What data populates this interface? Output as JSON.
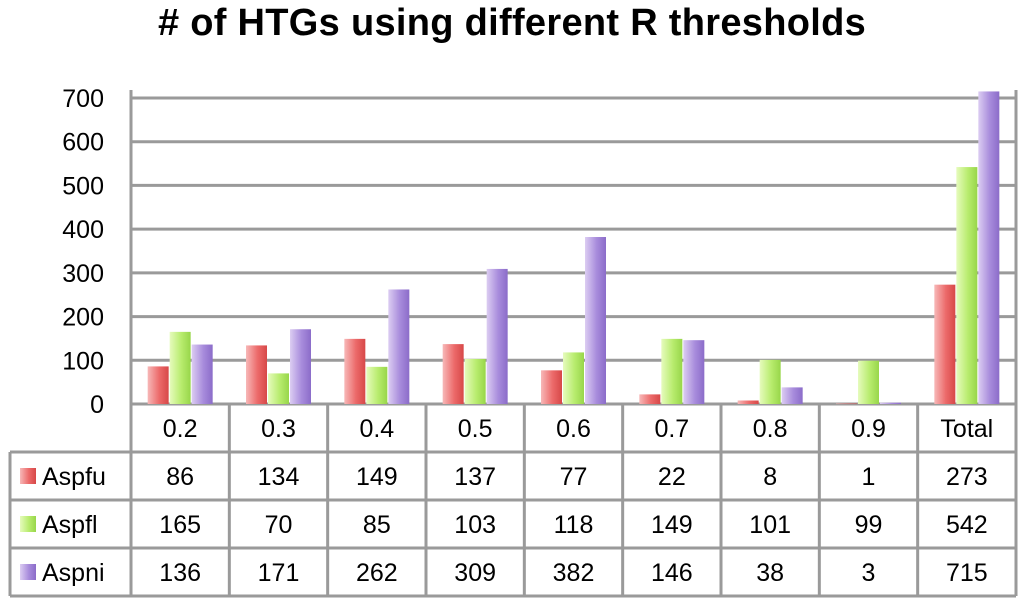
{
  "chart_data": {
    "type": "bar",
    "title": "# of HTGs using different R thresholds",
    "categories": [
      "0.2",
      "0.3",
      "0.4",
      "0.5",
      "0.6",
      "0.7",
      "0.8",
      "0.9",
      "Total"
    ],
    "ylim": [
      0,
      700
    ],
    "yticks": [
      0,
      100,
      200,
      300,
      400,
      500,
      600,
      700
    ],
    "ytick_labels": [
      "0",
      "100",
      "200",
      "300",
      "400",
      "500",
      "600",
      "700"
    ],
    "grid": true,
    "legend": "data-table",
    "series": [
      {
        "name": "Aspfu",
        "color": "#ec6a6a",
        "values": [
          86,
          134,
          149,
          137,
          77,
          22,
          8,
          1,
          273
        ]
      },
      {
        "name": "Aspfl",
        "color": "#b8ec6e",
        "values": [
          165,
          70,
          85,
          103,
          118,
          149,
          101,
          99,
          542
        ]
      },
      {
        "name": "Aspni",
        "color": "#a88cdc",
        "values": [
          136,
          171,
          262,
          309,
          382,
          146,
          38,
          3,
          715
        ]
      }
    ]
  }
}
